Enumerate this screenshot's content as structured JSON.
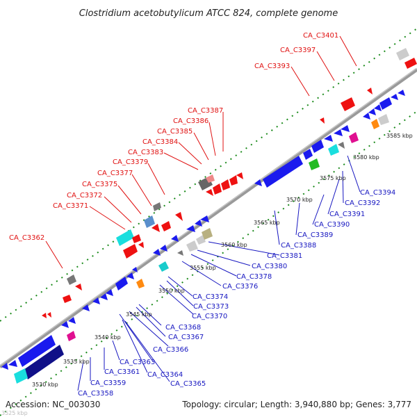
{
  "title": "Clostridium acetobutylicum ATCC 824, complete genome",
  "accession": "Accession: NC_003030",
  "topology": "Topology: circular; Length: 3,940,880 bp; Genes: 3,777",
  "corner_label": "3525 kbp",
  "scale_labels": [
    "3530 kbp",
    "3535 kbp",
    "3540 kbp",
    "3545 kbp",
    "3550 kbp",
    "3555 kbp",
    "3560 kbp",
    "3565 kbp",
    "3570 kbp",
    "3575 kbp",
    "3580 kbp",
    "3585 kbp"
  ],
  "top_strand_labels": [
    "CA_C3362",
    "CA_C3371",
    "CA_C3372",
    "CA_C3375",
    "CA_C3377",
    "CA_C3379",
    "CA_C3383",
    "CA_C3384",
    "CA_C3385",
    "CA_C3386",
    "CA_C3387",
    "CA_C3393",
    "CA_C3397",
    "CA_C3401"
  ],
  "bottom_strand_labels": [
    "CA_C3358",
    "CA_C3359",
    "CA_C3361",
    "CA_C3363",
    "CA_C3364",
    "CA_C3365",
    "CA_C3366",
    "CA_C3367",
    "CA_C3368",
    "CA_C3370",
    "CA_C3373",
    "CA_C3374",
    "CA_C3376",
    "CA_C3378",
    "CA_C3380",
    "CA_C3381",
    "CA_C3388",
    "CA_C3389",
    "CA_C3390",
    "CA_C3391",
    "CA_C3392",
    "CA_C3394"
  ],
  "colors": {
    "top_label": "#e01010",
    "bottom_label": "#1515c0",
    "forward_gene": "#ee1111",
    "reverse_gene": "#1a1aee",
    "backbone": "#8a8a8a",
    "tick_marks": "#1a8a1a"
  }
}
